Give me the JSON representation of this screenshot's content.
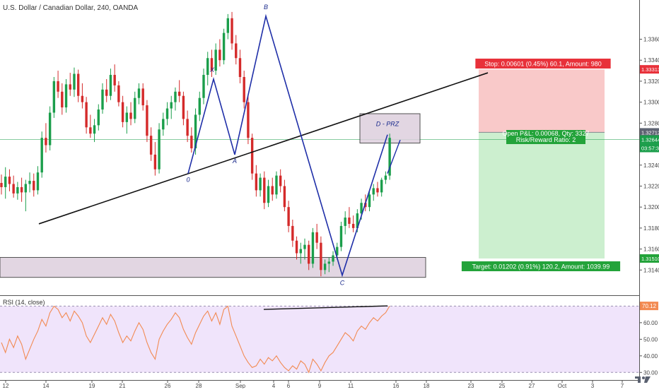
{
  "header": {
    "title": "U.S. Dollar / Canadian Dollar, 240, OANDA"
  },
  "colors": {
    "bull": "#1b9e4b",
    "bear": "#d42a2a",
    "pattern": "#1f2fa8",
    "trendline": "#111111",
    "stop_zone": "#f9c9c9",
    "target_zone": "#ccefcf",
    "stop_label": "#e8313a",
    "target_label": "#23a33a",
    "rsi_line": "#f28a52",
    "rsi_band": "#f0e4fb",
    "zone_fill": "#ddd0de"
  },
  "chart_data": [
    {
      "type": "candlestick",
      "title": "U.S. Dollar / Canadian Dollar, 240, OANDA",
      "ylim": [
        1.312,
        1.3392
      ],
      "y_ticks": [
        1.336,
        1.334,
        1.332,
        1.33,
        1.328,
        1.324,
        1.322,
        1.32,
        1.318,
        1.316,
        1.314
      ],
      "y_tick_labels": [
        "1.33600",
        "1.33400",
        "1.33200",
        "1.33000",
        "1.32800",
        "1.32400",
        "1.32200",
        "1.32000",
        "1.31800",
        "1.31600",
        "1.31400"
      ],
      "x_tick_labels": [
        "12",
        "14",
        "19",
        "21",
        "26",
        "28",
        "Sep",
        "4",
        "6",
        "9",
        "11",
        "16",
        "18",
        "23",
        "25",
        "27",
        "Oct",
        "3",
        "7"
      ],
      "price_tags": [
        {
          "label": "1.33313",
          "value": 1.33313,
          "color": "#e8313a"
        },
        {
          "label": "1.32712",
          "value": 1.32712,
          "color": "#5f6473"
        },
        {
          "label": "1.32644",
          "value": 1.32644,
          "color": "#1b9e4b"
        },
        {
          "label": "03:57:39",
          "value": 1.3255,
          "color": "#1b9e4b"
        },
        {
          "label": "1.31510",
          "value": 1.3151,
          "color": "#23a33a"
        }
      ],
      "pattern_points": [
        {
          "label": "0",
          "value": 1.3232
        },
        {
          "label": "X",
          "value": 1.3322
        },
        {
          "label": "A",
          "value": 1.325
        },
        {
          "label": "B",
          "value": 1.3382
        },
        {
          "label": "C",
          "value": 1.3135
        },
        {
          "label": "D - PRZ",
          "value": 1.3269
        }
      ],
      "zones": [
        {
          "label": "D - PRZ",
          "top": 1.3289,
          "bottom": 1.3261
        },
        {
          "label": "",
          "top": 1.3152,
          "bottom": 1.3133
        }
      ],
      "position": {
        "stop_text": "Stop: 0.00601 (0.45%) 60.1, Amount: 980",
        "open_text": "Open P&L: 0.00068, Qty: 3327",
        "rr_text": "Risk/Reward Ratio: 2",
        "target_text": "Target: 0.01202 (0.91%) 120.2, Amount: 1039.99",
        "stop_price": 1.33313,
        "entry_price": 1.32712,
        "target_price": 1.3151
      },
      "candles": [
        [
          1.3223,
          1.3231,
          1.3212,
          1.3219
        ],
        [
          1.3219,
          1.3238,
          1.3208,
          1.3229
        ],
        [
          1.3229,
          1.3236,
          1.3215,
          1.3222
        ],
        [
          1.3222,
          1.323,
          1.3209,
          1.3213
        ],
        [
          1.3213,
          1.3224,
          1.3207,
          1.3219
        ],
        [
          1.3219,
          1.3228,
          1.3205,
          1.3214
        ],
        [
          1.3214,
          1.3226,
          1.3196,
          1.3222
        ],
        [
          1.3222,
          1.3233,
          1.3214,
          1.3225
        ],
        [
          1.3225,
          1.3232,
          1.321,
          1.3216
        ],
        [
          1.3216,
          1.3239,
          1.3212,
          1.3233
        ],
        [
          1.3233,
          1.3272,
          1.3228,
          1.3266
        ],
        [
          1.3266,
          1.328,
          1.3252,
          1.3259
        ],
        [
          1.3259,
          1.3296,
          1.3254,
          1.329
        ],
        [
          1.329,
          1.3324,
          1.3285,
          1.332
        ],
        [
          1.332,
          1.333,
          1.3304,
          1.331
        ],
        [
          1.331,
          1.3318,
          1.3288,
          1.3295
        ],
        [
          1.3295,
          1.3322,
          1.329,
          1.3317
        ],
        [
          1.3317,
          1.3328,
          1.3306,
          1.3312
        ],
        [
          1.3312,
          1.3333,
          1.3305,
          1.3327
        ],
        [
          1.3327,
          1.3331,
          1.33,
          1.3306
        ],
        [
          1.3306,
          1.3318,
          1.3294,
          1.33
        ],
        [
          1.33,
          1.3305,
          1.327,
          1.3276
        ],
        [
          1.3276,
          1.3288,
          1.3266,
          1.327
        ],
        [
          1.327,
          1.3284,
          1.3262,
          1.3278
        ],
        [
          1.3278,
          1.3298,
          1.3273,
          1.3293
        ],
        [
          1.3293,
          1.3318,
          1.3289,
          1.3312
        ],
        [
          1.3312,
          1.3322,
          1.33,
          1.3306
        ],
        [
          1.3306,
          1.3332,
          1.3302,
          1.3326
        ],
        [
          1.3326,
          1.3336,
          1.331,
          1.3316
        ],
        [
          1.3316,
          1.332,
          1.3296,
          1.33
        ],
        [
          1.33,
          1.3306,
          1.3276,
          1.3281
        ],
        [
          1.3281,
          1.3296,
          1.327,
          1.329
        ],
        [
          1.329,
          1.33,
          1.3278,
          1.3284
        ],
        [
          1.3284,
          1.331,
          1.328,
          1.3304
        ],
        [
          1.3304,
          1.3318,
          1.3298,
          1.3313
        ],
        [
          1.3313,
          1.3318,
          1.3292,
          1.3297
        ],
        [
          1.3297,
          1.3302,
          1.3262,
          1.3268
        ],
        [
          1.3268,
          1.3276,
          1.3244,
          1.325
        ],
        [
          1.325,
          1.3262,
          1.323,
          1.3236
        ],
        [
          1.3236,
          1.328,
          1.3232,
          1.3274
        ],
        [
          1.3274,
          1.329,
          1.3268,
          1.3284
        ],
        [
          1.3284,
          1.33,
          1.3278,
          1.3294
        ],
        [
          1.3294,
          1.3306,
          1.3284,
          1.33
        ],
        [
          1.33,
          1.3314,
          1.3292,
          1.331
        ],
        [
          1.331,
          1.3321,
          1.33,
          1.3306
        ],
        [
          1.3306,
          1.331,
          1.3278,
          1.3284
        ],
        [
          1.3284,
          1.3292,
          1.3262,
          1.3268
        ],
        [
          1.3268,
          1.3276,
          1.3252,
          1.3256
        ],
        [
          1.3256,
          1.3294,
          1.325,
          1.3288
        ],
        [
          1.3288,
          1.331,
          1.3282,
          1.3304
        ],
        [
          1.3304,
          1.3332,
          1.3298,
          1.3326
        ],
        [
          1.3326,
          1.3348,
          1.3316,
          1.3342
        ],
        [
          1.3342,
          1.335,
          1.3324,
          1.333
        ],
        [
          1.333,
          1.3356,
          1.3326,
          1.335
        ],
        [
          1.335,
          1.336,
          1.3334,
          1.334
        ],
        [
          1.334,
          1.337,
          1.3336,
          1.3366
        ],
        [
          1.3366,
          1.3384,
          1.336,
          1.338
        ],
        [
          1.338,
          1.3386,
          1.335,
          1.3356
        ],
        [
          1.3356,
          1.3364,
          1.3336,
          1.3342
        ],
        [
          1.3342,
          1.335,
          1.3318,
          1.3324
        ],
        [
          1.3324,
          1.333,
          1.3294,
          1.33
        ],
        [
          1.33,
          1.3306,
          1.326,
          1.3266
        ],
        [
          1.3266,
          1.327,
          1.3226,
          1.3232
        ],
        [
          1.3232,
          1.324,
          1.321,
          1.3216
        ],
        [
          1.3216,
          1.3232,
          1.321,
          1.3228
        ],
        [
          1.3228,
          1.3234,
          1.3198,
          1.3204
        ],
        [
          1.3204,
          1.3226,
          1.32,
          1.322
        ],
        [
          1.322,
          1.3228,
          1.3206,
          1.3212
        ],
        [
          1.3212,
          1.3234,
          1.3208,
          1.323
        ],
        [
          1.323,
          1.3236,
          1.3214,
          1.322
        ],
        [
          1.322,
          1.3226,
          1.3196,
          1.32
        ],
        [
          1.32,
          1.3206,
          1.3176,
          1.3182
        ],
        [
          1.3182,
          1.3188,
          1.3162,
          1.3168
        ],
        [
          1.3168,
          1.3172,
          1.315,
          1.3156
        ],
        [
          1.3156,
          1.3166,
          1.3146,
          1.316
        ],
        [
          1.316,
          1.317,
          1.315,
          1.3164
        ],
        [
          1.3164,
          1.3168,
          1.314,
          1.3146
        ],
        [
          1.3146,
          1.318,
          1.3142,
          1.3176
        ],
        [
          1.3176,
          1.3184,
          1.316,
          1.3166
        ],
        [
          1.3166,
          1.3172,
          1.3134,
          1.314
        ],
        [
          1.314,
          1.315,
          1.3136,
          1.3146
        ],
        [
          1.3146,
          1.3152,
          1.3138,
          1.3148
        ],
        [
          1.3148,
          1.3158,
          1.3144,
          1.3154
        ],
        [
          1.3154,
          1.3166,
          1.315,
          1.3162
        ],
        [
          1.3162,
          1.3186,
          1.3158,
          1.3182
        ],
        [
          1.3182,
          1.3196,
          1.3174,
          1.319
        ],
        [
          1.319,
          1.32,
          1.318,
          1.3184
        ],
        [
          1.3184,
          1.3192,
          1.3176,
          1.318
        ],
        [
          1.318,
          1.3198,
          1.3176,
          1.3194
        ],
        [
          1.3194,
          1.3208,
          1.3188,
          1.3204
        ],
        [
          1.3204,
          1.3212,
          1.3196,
          1.32
        ],
        [
          1.32,
          1.3216,
          1.3196,
          1.3212
        ],
        [
          1.3212,
          1.3222,
          1.3206,
          1.3218
        ],
        [
          1.3218,
          1.3224,
          1.321,
          1.3214
        ],
        [
          1.3214,
          1.3228,
          1.321,
          1.3226
        ],
        [
          1.3226,
          1.3234,
          1.3222,
          1.323
        ],
        [
          1.323,
          1.327,
          1.3226,
          1.3266
        ]
      ]
    },
    {
      "type": "line",
      "title": "RSI (14, close)",
      "ylim": [
        28,
        74
      ],
      "y_ticks": [
        60,
        50,
        40,
        30
      ],
      "y_tick_labels": [
        "60.00",
        "50.00",
        "40.00",
        "30.00"
      ],
      "band": [
        30,
        70
      ],
      "last_label": "70.12",
      "series": [
        {
          "values": [
            48,
            42,
            50,
            45,
            52,
            47,
            38,
            44,
            50,
            55,
            62,
            58,
            66,
            70,
            68,
            63,
            66,
            61,
            67,
            64,
            60,
            52,
            48,
            53,
            58,
            63,
            59,
            65,
            61,
            54,
            48,
            52,
            49,
            55,
            60,
            56,
            48,
            42,
            38,
            50,
            55,
            59,
            62,
            66,
            63,
            56,
            51,
            47,
            54,
            59,
            64,
            67,
            61,
            66,
            59,
            68,
            70,
            58,
            52,
            46,
            40,
            36,
            33,
            34,
            38,
            35,
            39,
            37,
            40,
            36,
            33,
            31,
            34,
            32,
            37,
            35,
            30,
            38,
            35,
            31,
            36,
            40,
            42,
            46,
            50,
            54,
            52,
            49,
            55,
            58,
            56,
            60,
            63,
            61,
            64,
            66,
            70.12
          ]
        }
      ]
    }
  ]
}
